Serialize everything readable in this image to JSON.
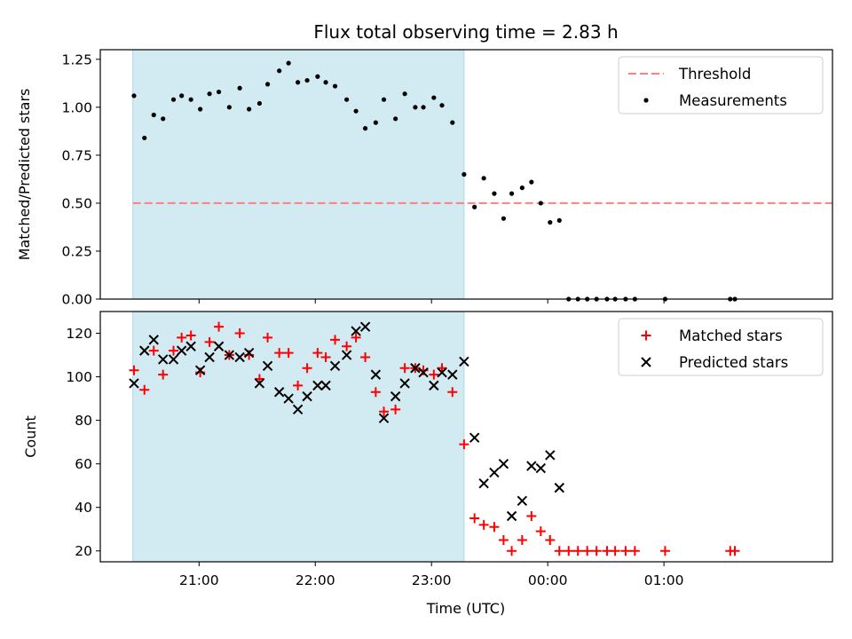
{
  "chart_data": {
    "type": "scatter",
    "title": "Flux total observing time = 2.83 h",
    "xlabel": "Time (UTC)",
    "x_ticks": [
      "21:00",
      "22:00",
      "23:00",
      "00:00",
      "01:00"
    ],
    "x_tick_values": [
      21.0,
      22.0,
      23.0,
      24.0,
      25.0
    ],
    "xlim": [
      20.15,
      26.45
    ],
    "shaded_interval": [
      20.43,
      23.28
    ],
    "shade_color": "#add8e6",
    "panels": [
      {
        "ylabel": "Matched/Predicted stars",
        "ylim": [
          0,
          1.3
        ],
        "y_ticks": [
          0.0,
          0.25,
          0.5,
          0.75,
          1.0,
          1.25
        ],
        "y_tick_labels": [
          "0.00",
          "0.25",
          "0.50",
          "0.75",
          "1.00",
          "1.25"
        ],
        "legend": {
          "position": "upper right",
          "entries": [
            {
              "label": "Threshold",
              "style": "dashed-line",
              "color": "#ff7f7f"
            },
            {
              "label": "Measurements",
              "style": "dot",
              "color": "#000000"
            }
          ]
        },
        "series": [
          {
            "name": "Threshold",
            "kind": "hline",
            "value": 0.5,
            "x_range": [
              20.43,
              26.6
            ],
            "color": "#ff7f7f"
          },
          {
            "name": "Measurements",
            "kind": "dot",
            "color": "#000000",
            "x": [
              20.44,
              20.53,
              20.61,
              20.69,
              20.78,
              20.85,
              20.93,
              21.01,
              21.09,
              21.17,
              21.26,
              21.35,
              21.43,
              21.52,
              21.59,
              21.69,
              21.77,
              21.85,
              21.93,
              22.02,
              22.09,
              22.17,
              22.27,
              22.35,
              22.43,
              22.52,
              22.59,
              22.69,
              22.77,
              22.86,
              22.93,
              23.02,
              23.09,
              23.18,
              23.28,
              23.37,
              23.45,
              23.54,
              23.62,
              23.69,
              23.78,
              23.86,
              23.94,
              24.02,
              24.1,
              24.18,
              24.26,
              24.34,
              24.42,
              24.51,
              24.58,
              24.67,
              24.75,
              25.01,
              25.57,
              25.61
            ],
            "y": [
              1.06,
              0.84,
              0.96,
              0.94,
              1.04,
              1.06,
              1.04,
              0.99,
              1.07,
              1.08,
              1.0,
              1.1,
              0.99,
              1.02,
              1.12,
              1.19,
              1.23,
              1.13,
              1.14,
              1.16,
              1.13,
              1.11,
              1.04,
              0.98,
              0.89,
              0.92,
              1.04,
              0.94,
              1.07,
              1.0,
              1.0,
              1.05,
              1.01,
              0.92,
              0.65,
              0.48,
              0.63,
              0.55,
              0.42,
              0.55,
              0.58,
              0.61,
              0.5,
              0.4,
              0.41,
              0.0,
              0.0,
              0.0,
              0.0,
              0.0,
              0.0,
              0.0,
              0.0,
              0.0,
              0.0,
              0.0
            ]
          }
        ]
      },
      {
        "ylabel": "Count",
        "ylim": [
          15,
          130
        ],
        "y_ticks": [
          20,
          40,
          60,
          80,
          100,
          120
        ],
        "y_tick_labels": [
          "20",
          "40",
          "60",
          "80",
          "100",
          "120"
        ],
        "legend": {
          "position": "upper right",
          "entries": [
            {
              "label": "Matched stars",
              "style": "plus",
              "color": "#ff0000"
            },
            {
              "label": "Predicted stars",
              "style": "x",
              "color": "#000000"
            }
          ]
        },
        "series": [
          {
            "name": "Matched stars",
            "kind": "plus",
            "color": "#ff0000",
            "x": [
              20.44,
              20.53,
              20.61,
              20.69,
              20.78,
              20.85,
              20.93,
              21.01,
              21.09,
              21.17,
              21.26,
              21.35,
              21.43,
              21.52,
              21.59,
              21.69,
              21.77,
              21.85,
              21.93,
              22.02,
              22.09,
              22.17,
              22.27,
              22.35,
              22.43,
              22.52,
              22.59,
              22.69,
              22.77,
              22.86,
              22.93,
              23.02,
              23.09,
              23.18,
              23.28,
              23.37,
              23.45,
              23.54,
              23.62,
              23.69,
              23.78,
              23.86,
              23.94,
              24.02,
              24.1,
              24.18,
              24.26,
              24.34,
              24.42,
              24.51,
              24.58,
              24.67,
              24.75,
              25.01,
              25.57,
              25.61
            ],
            "y": [
              103,
              94,
              112,
              101,
              112,
              118,
              119,
              102,
              116,
              123,
              110,
              120,
              110,
              99,
              118,
              111,
              111,
              96,
              104,
              111,
              109,
              117,
              114,
              118,
              109,
              93,
              84,
              85,
              104,
              104,
              103,
              101,
              104,
              93,
              69,
              35,
              32,
              31,
              25,
              20,
              25,
              36,
              29,
              25,
              20,
              20,
              20,
              20,
              20,
              20,
              20,
              20,
              20,
              20,
              20,
              20
            ]
          },
          {
            "name": "Predicted stars",
            "kind": "x",
            "color": "#000000",
            "x": [
              20.44,
              20.53,
              20.61,
              20.69,
              20.78,
              20.85,
              20.93,
              21.01,
              21.09,
              21.17,
              21.26,
              21.35,
              21.43,
              21.52,
              21.59,
              21.69,
              21.77,
              21.85,
              21.93,
              22.02,
              22.09,
              22.17,
              22.27,
              22.35,
              22.43,
              22.52,
              22.59,
              22.69,
              22.77,
              22.86,
              22.93,
              23.02,
              23.09,
              23.18,
              23.28,
              23.37,
              23.45,
              23.54,
              23.62,
              23.69,
              23.78,
              23.86,
              23.94,
              24.02,
              24.1
            ],
            "y": [
              97,
              112,
              117,
              108,
              108,
              112,
              114,
              103,
              109,
              114,
              110,
              109,
              111,
              97,
              105,
              93,
              90,
              85,
              91,
              96,
              96,
              105,
              110,
              121,
              123,
              101,
              81,
              91,
              97,
              104,
              102,
              96,
              102,
              101,
              107,
              72,
              51,
              56,
              60,
              36,
              43,
              59,
              58,
              64,
              49
            ]
          }
        ]
      }
    ]
  }
}
